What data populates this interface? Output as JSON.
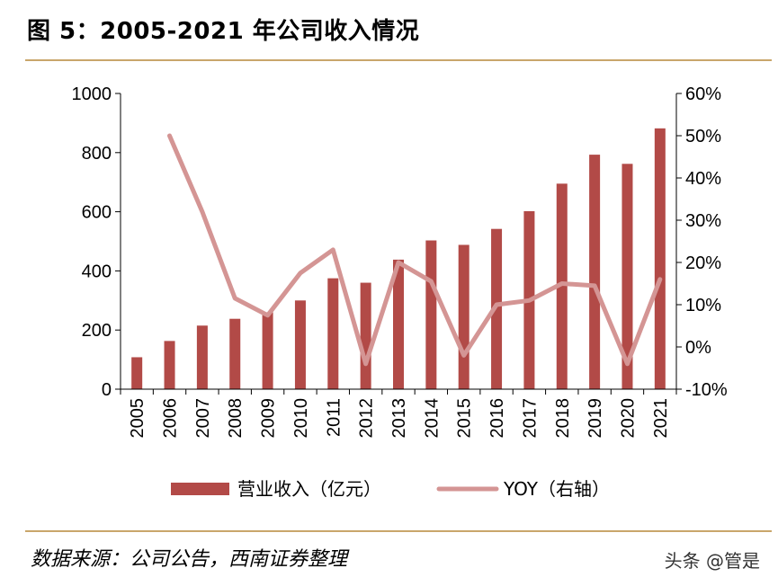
{
  "figure_title": "图 5：2005-2021 年公司收入情况",
  "source_note": "数据来源：公司公告，西南证券整理",
  "watermark": "头条 @管是",
  "colors": {
    "bar": "#b24a47",
    "line": "#d49594",
    "rule": "#c9a66b"
  },
  "chart_data": {
    "type": "bar",
    "categories": [
      "2005",
      "2006",
      "2007",
      "2008",
      "2009",
      "2010",
      "2011",
      "2012",
      "2013",
      "2014",
      "2015",
      "2016",
      "2017",
      "2018",
      "2019",
      "2020",
      "2021"
    ],
    "series": [
      {
        "name": "营业收入（亿元）",
        "type": "bar",
        "axis": "left",
        "values": [
          108,
          163,
          215,
          238,
          260,
          300,
          375,
          360,
          438,
          503,
          488,
          542,
          602,
          695,
          793,
          762,
          882
        ]
      },
      {
        "name": "YOY（右轴）",
        "type": "line",
        "axis": "right",
        "values": [
          null,
          50,
          32,
          11.5,
          7.5,
          17.5,
          23,
          -4,
          20,
          15.5,
          -2,
          10,
          11,
          15,
          14.5,
          -4,
          16
        ]
      }
    ],
    "y_left": {
      "min": 0,
      "max": 1000,
      "ticks": [
        0,
        200,
        400,
        600,
        800,
        1000
      ],
      "tick_labels": [
        "0",
        "200",
        "400",
        "600",
        "800",
        "1000"
      ]
    },
    "y_right": {
      "min": -10,
      "max": 60,
      "ticks": [
        -10,
        0,
        10,
        20,
        30,
        40,
        50,
        60
      ],
      "tick_labels": [
        "-10%",
        "0%",
        "10%",
        "20%",
        "30%",
        "40%",
        "50%",
        "60%"
      ]
    },
    "legend": {
      "placement": "bottom",
      "entries": [
        "营业收入（亿元）",
        "YOY（右轴）"
      ]
    },
    "grid": false
  }
}
